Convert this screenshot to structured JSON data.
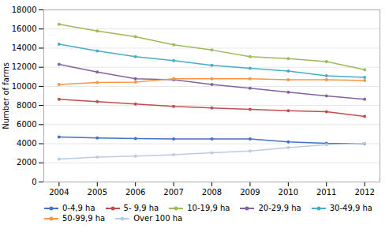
{
  "chart_data": {
    "type": "line",
    "x": [
      2004,
      2005,
      2006,
      2007,
      2008,
      2009,
      2010,
      2011,
      2012
    ],
    "series": [
      {
        "name": "0-4,9 ha",
        "color": "#4472C4",
        "values": [
          4700,
          4600,
          4550,
          4500,
          4500,
          4500,
          4200,
          4050,
          4000
        ]
      },
      {
        "name": "5- 9,9 ha",
        "color": "#C0504D",
        "values": [
          8650,
          8400,
          8150,
          7900,
          7750,
          7600,
          7450,
          7350,
          6850
        ]
      },
      {
        "name": "10-19,9 ha",
        "color": "#9BBB59",
        "values": [
          16500,
          15800,
          15200,
          14350,
          13800,
          13100,
          12900,
          12600,
          11750
        ]
      },
      {
        "name": "20-29,9 ha",
        "color": "#8064A2",
        "values": [
          12300,
          11500,
          10800,
          10700,
          10200,
          9800,
          9400,
          9000,
          8650
        ]
      },
      {
        "name": "30-49,9 ha",
        "color": "#4BACC6",
        "values": [
          14400,
          13700,
          13100,
          12700,
          12200,
          11900,
          11600,
          11100,
          10950
        ]
      },
      {
        "name": "50-99,9 ha",
        "color": "#F79646",
        "values": [
          10200,
          10400,
          10450,
          10800,
          10800,
          10800,
          10700,
          10700,
          10600
        ]
      },
      {
        "name": "Over 100 ha",
        "color": "#B8CCE4",
        "values": [
          2400,
          2600,
          2700,
          2850,
          3050,
          3250,
          3600,
          3900,
          4050
        ]
      }
    ],
    "ylabel": "Number of farms",
    "xlim": [
      2003.6,
      2012.4
    ],
    "xticks": [
      2004,
      2005,
      2006,
      2007,
      2008,
      2009,
      2010,
      2011,
      2012
    ],
    "ylim": [
      0,
      18000
    ],
    "yticks": [
      0,
      2000,
      4000,
      6000,
      8000,
      10000,
      12000,
      14000,
      16000,
      18000
    ],
    "grid": true,
    "legend": "bottom",
    "marker": "o"
  }
}
